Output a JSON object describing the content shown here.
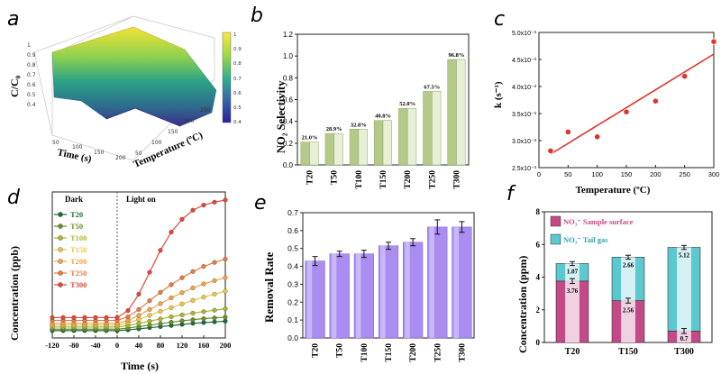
{
  "panels": {
    "a": {
      "letter": "a",
      "zlabel": "C/C₀",
      "xlabel": "Time (s)",
      "ylabel": "Temperature (ºC)",
      "z_ticks": [
        "0.4",
        "0.5",
        "0.6",
        "0.7",
        "0.8",
        "0.9",
        "1"
      ],
      "x_ticks": [
        "50",
        "100",
        "150",
        "200"
      ],
      "y_ticks": [
        "50",
        "100",
        "150",
        "200",
        "250"
      ],
      "colorbar_ticks": [
        "1",
        "0.9",
        "0.8",
        "0.7",
        "0.6",
        "0.5",
        "0.4"
      ]
    },
    "b": {
      "letter": "b",
      "ylabel": "NO₂ Selectivity",
      "y_ticks": [
        "0.0",
        "0.2",
        "0.4",
        "0.6",
        "0.8",
        "1.0",
        "1.2"
      ],
      "categories": [
        "T20",
        "T50",
        "T100",
        "T150",
        "T200",
        "T250",
        "T300"
      ],
      "value_labels": [
        "21.0%",
        "28.9%",
        "32.8%",
        "40.8%",
        "52.0%",
        "67.5%",
        "96.8%"
      ],
      "colors": {
        "bar": "#b5c98a",
        "bar_dark": "#8ea55f"
      }
    },
    "c": {
      "letter": "c",
      "ylabel": "k (s⁻¹)",
      "xlabel": "Temperature (ºC)",
      "y_ticks": [
        "2.5x10⁻³",
        "3.0x10⁻³",
        "3.5x10⁻³",
        "4.0x10⁻³",
        "4.5x10⁻³",
        "5.0x10⁻³"
      ],
      "x_ticks": [
        "0",
        "50",
        "100",
        "150",
        "200",
        "250",
        "300"
      ],
      "colors": {
        "point": "#e0332a",
        "line": "#e0332a"
      }
    },
    "d": {
      "letter": "d",
      "ylabel": "Concentration (ppb)",
      "xlabel": "Time (s)",
      "dark_label": "Dark",
      "light_label": "Light on",
      "x_ticks": [
        "-120",
        "-80",
        "-40",
        "0",
        "40",
        "80",
        "120",
        "160",
        "200"
      ],
      "legend": [
        "T20",
        "T50",
        "T100",
        "T150",
        "T200",
        "T250",
        "T300"
      ],
      "colors": [
        "#1f6b3a",
        "#6b8f2a",
        "#a9b832",
        "#e8c64a",
        "#eea54a",
        "#e77a45",
        "#e0483a"
      ]
    },
    "e": {
      "letter": "e",
      "ylabel": "Removal Rate",
      "y_ticks": [
        "0.0",
        "0.1",
        "0.2",
        "0.3",
        "0.4",
        "0.5",
        "0.6",
        "0.7"
      ],
      "categories": [
        "T20",
        "T50",
        "T100",
        "T150",
        "T200",
        "T250",
        "T300"
      ],
      "colors": {
        "bar": "#a98df0",
        "bar_dark": "#7a5fd6"
      }
    },
    "f": {
      "letter": "f",
      "ylabel": "Concentration (ppm)",
      "y_ticks": [
        "0",
        "2",
        "4",
        "6",
        "8"
      ],
      "categories": [
        "T20",
        "T150",
        "T300"
      ],
      "legend_surface": "NO₃⁻ Sample surface",
      "legend_tail": "NO₃⁻ Tail gas",
      "surface_labels": [
        "3.76",
        "2.56",
        "0.7"
      ],
      "tail_labels": [
        "1.07",
        "2.66",
        "5.12"
      ],
      "colors": {
        "surface": "#c44a86",
        "tail": "#5cc8cf"
      }
    }
  },
  "chart_data": [
    {
      "type": "surface",
      "title": "",
      "xlabel": "Time (s)",
      "ylabel": "Temperature (ºC)",
      "zlabel": "C/C₀",
      "x_range": [
        0,
        200
      ],
      "y_range": [
        0,
        250
      ],
      "z_range": [
        0.4,
        1.0
      ],
      "colormap": "viridis-like",
      "colorbar_range": [
        0.4,
        1.0
      ]
    },
    {
      "type": "bar",
      "categories": [
        "T20",
        "T50",
        "T100",
        "T150",
        "T200",
        "T250",
        "T300"
      ],
      "values": [
        0.21,
        0.289,
        0.328,
        0.408,
        0.52,
        0.675,
        0.968
      ],
      "xlabel": "",
      "ylabel": "NO₂ Selectivity",
      "ylim": [
        0,
        1.2
      ]
    },
    {
      "type": "scatter",
      "x": [
        20,
        50,
        100,
        150,
        200,
        250,
        300
      ],
      "y": [
        0.00281,
        0.00316,
        0.00307,
        0.00353,
        0.00373,
        0.00419,
        0.00483
      ],
      "fit_line": {
        "x": [
          20,
          300
        ],
        "y": [
          0.00275,
          0.0046
        ]
      },
      "xlabel": "Temperature (ºC)",
      "ylabel": "k (s⁻¹)",
      "xlim": [
        0,
        300
      ],
      "ylim": [
        0.0025,
        0.005
      ]
    },
    {
      "type": "line",
      "x": [
        -120,
        -100,
        -80,
        -60,
        -40,
        -20,
        0,
        20,
        40,
        60,
        80,
        100,
        120,
        140,
        160,
        180,
        200
      ],
      "series": [
        {
          "name": "T20",
          "values": [
            20,
            20,
            20,
            20,
            20,
            20,
            20,
            22,
            25,
            28,
            31,
            34,
            37,
            40,
            42,
            44,
            46
          ]
        },
        {
          "name": "T50",
          "values": [
            24,
            24,
            24,
            24,
            24,
            24,
            24,
            27,
            31,
            35,
            39,
            43,
            47,
            50,
            53,
            55,
            57
          ]
        },
        {
          "name": "T100",
          "values": [
            30,
            30,
            30,
            30,
            30,
            30,
            30,
            34,
            40,
            46,
            52,
            58,
            63,
            68,
            72,
            76,
            80
          ]
        },
        {
          "name": "T150",
          "values": [
            35,
            35,
            35,
            35,
            35,
            35,
            35,
            41,
            51,
            62,
            73,
            83,
            93,
            103,
            112,
            120,
            128
          ]
        },
        {
          "name": "T200",
          "values": [
            40,
            40,
            40,
            40,
            40,
            40,
            40,
            48,
            62,
            78,
            94,
            110,
            124,
            137,
            148,
            157,
            165
          ]
        },
        {
          "name": "T250",
          "values": [
            48,
            48,
            48,
            48,
            48,
            48,
            48,
            58,
            78,
            102,
            125,
            146,
            165,
            182,
            196,
            207,
            216
          ]
        },
        {
          "name": "T300",
          "values": [
            56,
            56,
            56,
            56,
            56,
            56,
            56,
            75,
            120,
            180,
            240,
            290,
            325,
            350,
            364,
            372,
            378
          ]
        }
      ],
      "xlabel": "Time (s)",
      "ylabel": "Concentration (ppb)",
      "xlim": [
        -120,
        200
      ],
      "ylim": [
        0,
        400
      ]
    },
    {
      "type": "bar",
      "categories": [
        "T20",
        "T50",
        "T100",
        "T150",
        "T200",
        "T250",
        "T300"
      ],
      "values": [
        0.43,
        0.47,
        0.47,
        0.515,
        0.535,
        0.62,
        0.62
      ],
      "errors": [
        0.025,
        0.015,
        0.02,
        0.02,
        0.02,
        0.04,
        0.03
      ],
      "xlabel": "",
      "ylabel": "Removal Rate",
      "ylim": [
        0,
        0.7
      ]
    },
    {
      "type": "bar",
      "stacked": true,
      "categories": [
        "T20",
        "T150",
        "T300"
      ],
      "series": [
        {
          "name": "NO₃⁻ Sample surface",
          "values": [
            3.76,
            2.56,
            0.7
          ],
          "errors": [
            0.15,
            0.15,
            0.15
          ]
        },
        {
          "name": "NO₃⁻ Tail gas",
          "values": [
            1.07,
            2.66,
            5.12
          ],
          "errors": [
            0.12,
            0.12,
            0.15
          ]
        }
      ],
      "xlabel": "",
      "ylabel": "Concentration (ppm)",
      "ylim": [
        0,
        8
      ]
    }
  ]
}
